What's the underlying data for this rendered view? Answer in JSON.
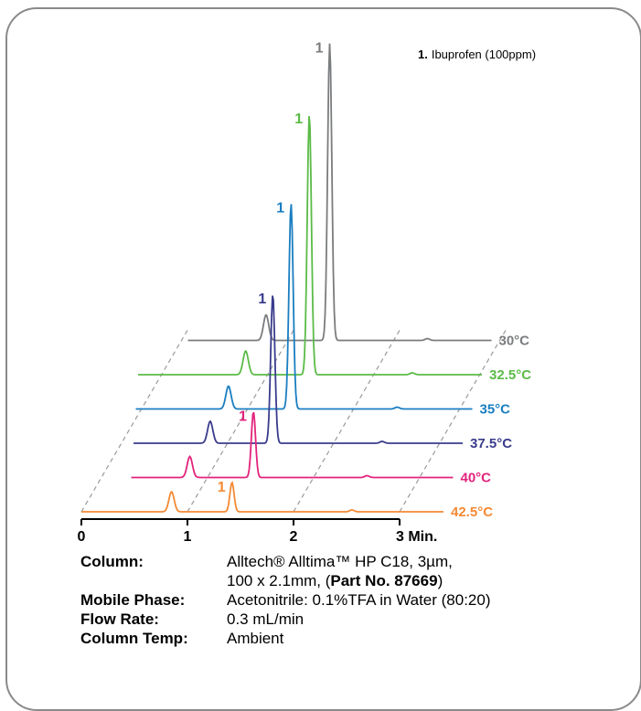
{
  "chart_data": {
    "type": "line",
    "layout_note": "waterfall chromatograms (3D offset traces)",
    "xlabel_ticks": [
      "0",
      "1",
      "2",
      "3 Min."
    ],
    "xlim": [
      0,
      3
    ],
    "legend": {
      "number": "1.",
      "text": "Ibuprofen (100ppm)"
    },
    "series": [
      {
        "name": "30°C",
        "color": "#7a7c7e",
        "peak_label": "1",
        "peaks": [
          {
            "x": 1.03,
            "height": 0.28
          },
          {
            "x": 1.63,
            "height": 3.25
          }
        ]
      },
      {
        "name": "32.5°C",
        "color": "#5bbb47",
        "peak_label": "1",
        "peaks": [
          {
            "x": 0.98,
            "height": 0.26
          },
          {
            "x": 1.58,
            "height": 2.85
          }
        ]
      },
      {
        "name": "35°C",
        "color": "#1a7ec1",
        "peak_label": "1",
        "peaks": [
          {
            "x": 0.96,
            "height": 0.25
          },
          {
            "x": 1.55,
            "height": 2.25
          }
        ]
      },
      {
        "name": "37.5°C",
        "color": "#3a3c8c",
        "peak_label": "1",
        "peaks": [
          {
            "x": 0.93,
            "height": 0.24
          },
          {
            "x": 1.52,
            "height": 1.63
          }
        ]
      },
      {
        "name": "40°C",
        "color": "#e2237c",
        "peak_label": "1",
        "peaks": [
          {
            "x": 0.88,
            "height": 0.23
          },
          {
            "x": 1.48,
            "height": 0.72
          }
        ]
      },
      {
        "name": "42.5°C",
        "color": "#f48a34",
        "peak_label": "1",
        "peaks": [
          {
            "x": 0.85,
            "height": 0.22
          },
          {
            "x": 1.42,
            "height": 0.32
          }
        ]
      }
    ]
  },
  "info": {
    "rows": [
      {
        "label": "Column:",
        "value": "Alltech® Alltima™ HP C18, 3µm,"
      },
      {
        "label": "",
        "value_plain": "100 x 2.1mm, (",
        "value_bold": "Part No. 87669",
        "value_end": ")"
      },
      {
        "label": "Mobile Phase:",
        "value": "Acetonitrile: 0.1%TFA in Water (80:20)"
      },
      {
        "label": "Flow Rate:",
        "value": "0.3 mL/min"
      },
      {
        "label": "Column Temp:",
        "value": "Ambient"
      }
    ]
  }
}
